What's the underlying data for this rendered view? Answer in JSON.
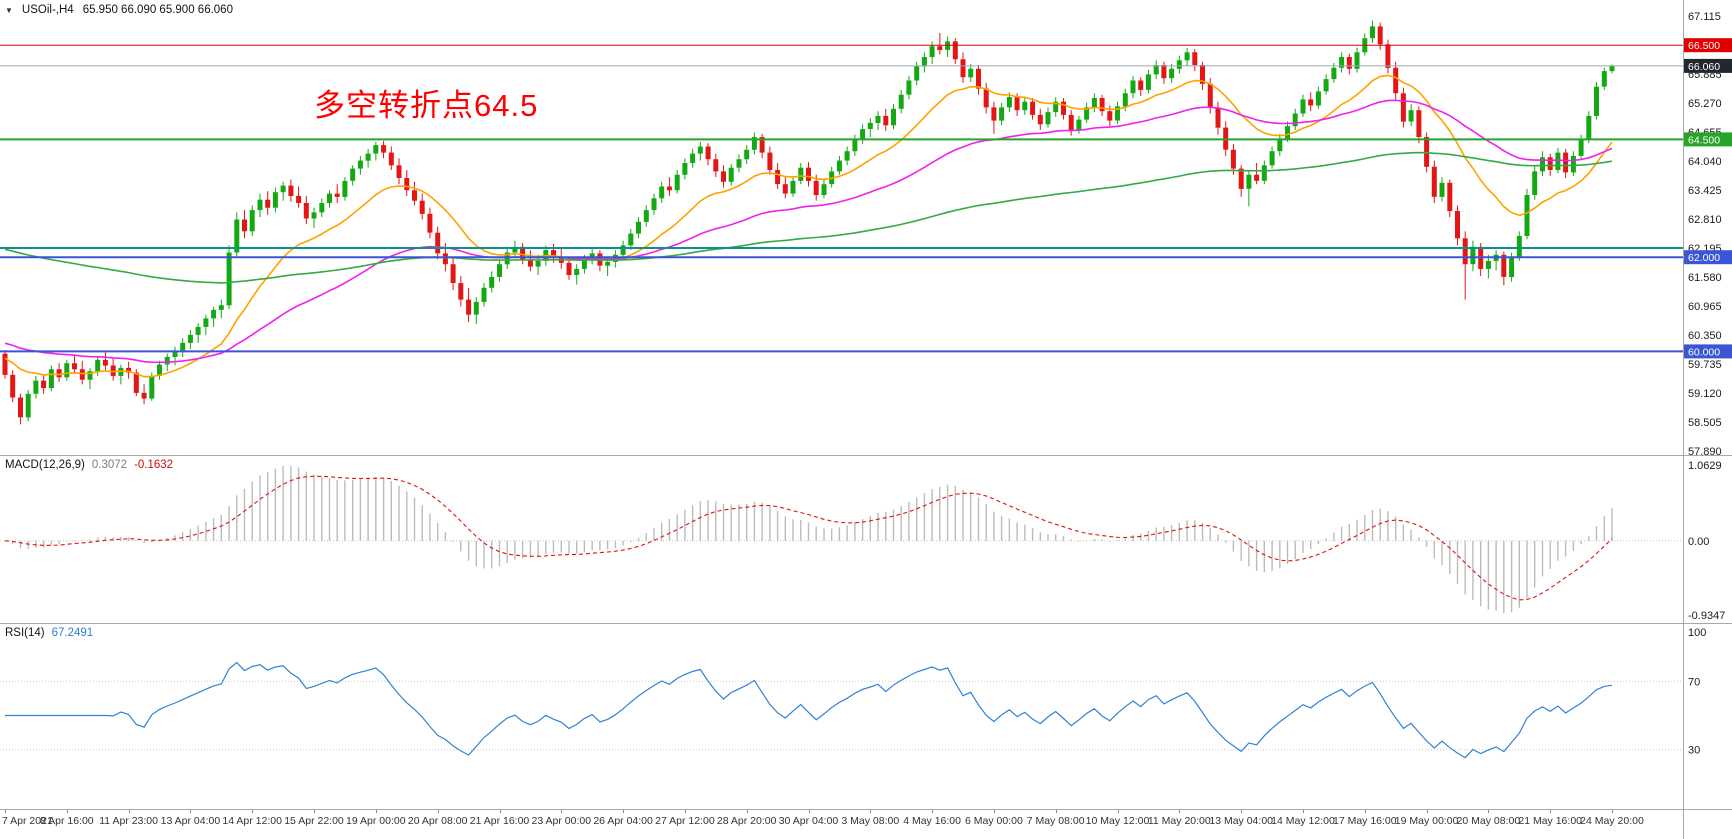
{
  "header": {
    "collapse_icon": "▼",
    "symbol": "USOil-,H4",
    "ohlc": "65.950 66.090 65.900 66.060"
  },
  "annotation": {
    "text": "多空转折点64.5",
    "color": "#ff0000"
  },
  "colors": {
    "background": "#ffffff",
    "up": "#13a913",
    "down": "#e41515",
    "axis_text": "#1c1c1c",
    "divider": "#a8a8a8",
    "macd_hist": "#bbbbbb",
    "macd_signal": "#dd1111",
    "rsi_line": "#2f82d8",
    "level_dotted": "#c9c9c9",
    "time_text": "#333333"
  },
  "chart_data": {
    "type": "candlestick",
    "symbol": "USOil-",
    "timeframe": "H4",
    "current_bar": {
      "open": 65.95,
      "high": 66.09,
      "low": 65.9,
      "close": 66.06
    },
    "price_axis_range": [
      57.8,
      67.46
    ],
    "y_ticks": [
      "67.115",
      "65.885",
      "65.270",
      "64.655",
      "64.040",
      "63.425",
      "62.810",
      "62.195",
      "61.580",
      "60.965",
      "60.350",
      "59.735",
      "59.120",
      "58.505",
      "57.890"
    ],
    "horizontal_lines": [
      {
        "price": 66.5,
        "color": "#e00000",
        "width": 1,
        "badge": "66.500",
        "badge_bg": "#e00000"
      },
      {
        "price": 64.5,
        "color": "#28a428",
        "width": 2,
        "badge": "64.500",
        "badge_bg": "#28a428"
      },
      {
        "price": 62.195,
        "color": "#0e8f8f",
        "width": 2
      },
      {
        "price": 62.0,
        "color": "#3b55d4",
        "width": 2,
        "badge": "62.000",
        "badge_bg": "#3b55d4"
      },
      {
        "price": 60.0,
        "color": "#3b55d4",
        "width": 2,
        "badge": "60.000",
        "badge_bg": "#3b55d4"
      },
      {
        "price": 66.06,
        "color": "#9aa8b5",
        "width": 1,
        "badge": "66.060",
        "badge_bg": "#23272e"
      }
    ],
    "moving_averages": [
      {
        "name": "ma-fast",
        "period": 16,
        "color": "#ffa200",
        "seed": 59.9
      },
      {
        "name": "ma-mid",
        "period": 50,
        "color": "#ee22ee",
        "seed": 60.2
      },
      {
        "name": "ma-slow",
        "period": 160,
        "color": "#33aa44",
        "seed": 62.2
      }
    ],
    "candles_ohlc": [
      [
        59.95,
        60.02,
        59.42,
        59.5
      ],
      [
        59.5,
        59.6,
        58.92,
        59.02
      ],
      [
        59.02,
        59.1,
        58.45,
        58.6
      ],
      [
        58.6,
        59.18,
        58.52,
        59.1
      ],
      [
        59.1,
        59.48,
        59.0,
        59.38
      ],
      [
        59.38,
        59.52,
        59.1,
        59.22
      ],
      [
        59.22,
        59.7,
        59.15,
        59.62
      ],
      [
        59.62,
        59.75,
        59.35,
        59.45
      ],
      [
        59.45,
        59.82,
        59.38,
        59.75
      ],
      [
        59.75,
        59.92,
        59.55,
        59.62
      ],
      [
        59.62,
        59.8,
        59.3,
        59.4
      ],
      [
        59.4,
        59.65,
        59.2,
        59.58
      ],
      [
        59.58,
        59.9,
        59.48,
        59.82
      ],
      [
        59.82,
        59.98,
        59.6,
        59.7
      ],
      [
        59.7,
        59.85,
        59.38,
        59.48
      ],
      [
        59.48,
        59.72,
        59.3,
        59.65
      ],
      [
        59.65,
        59.78,
        59.42,
        59.55
      ],
      [
        59.55,
        59.62,
        59.05,
        59.12
      ],
      [
        59.12,
        59.3,
        58.88,
        59.0
      ],
      [
        59.0,
        59.55,
        58.95,
        59.48
      ],
      [
        59.48,
        59.8,
        59.4,
        59.72
      ],
      [
        59.72,
        59.95,
        59.58,
        59.88
      ],
      [
        59.88,
        60.1,
        59.7,
        60.02
      ],
      [
        60.02,
        60.28,
        59.88,
        60.18
      ],
      [
        60.18,
        60.45,
        60.05,
        60.35
      ],
      [
        60.35,
        60.6,
        60.18,
        60.52
      ],
      [
        60.52,
        60.78,
        60.35,
        60.7
      ],
      [
        60.7,
        60.95,
        60.52,
        60.88
      ],
      [
        60.88,
        61.1,
        60.7,
        60.98
      ],
      [
        60.98,
        62.25,
        60.9,
        62.1
      ],
      [
        62.1,
        62.95,
        62.0,
        62.8
      ],
      [
        62.8,
        63.0,
        62.4,
        62.55
      ],
      [
        62.55,
        63.1,
        62.45,
        63.0
      ],
      [
        63.0,
        63.35,
        62.85,
        63.22
      ],
      [
        63.22,
        63.4,
        62.9,
        63.05
      ],
      [
        63.05,
        63.48,
        62.95,
        63.38
      ],
      [
        63.38,
        63.6,
        63.2,
        63.52
      ],
      [
        63.52,
        63.65,
        63.18,
        63.3
      ],
      [
        63.3,
        63.5,
        63.05,
        63.15
      ],
      [
        63.15,
        63.3,
        62.7,
        62.82
      ],
      [
        62.82,
        63.05,
        62.62,
        62.95
      ],
      [
        62.95,
        63.25,
        62.85,
        63.15
      ],
      [
        63.15,
        63.42,
        63.05,
        63.35
      ],
      [
        63.35,
        63.55,
        63.15,
        63.28
      ],
      [
        63.28,
        63.7,
        63.2,
        63.62
      ],
      [
        63.62,
        63.95,
        63.52,
        63.88
      ],
      [
        63.88,
        64.15,
        63.75,
        64.05
      ],
      [
        64.05,
        64.3,
        63.9,
        64.2
      ],
      [
        64.2,
        64.45,
        64.05,
        64.38
      ],
      [
        64.38,
        64.47,
        64.1,
        64.22
      ],
      [
        64.22,
        64.35,
        63.85,
        63.95
      ],
      [
        63.95,
        64.1,
        63.55,
        63.68
      ],
      [
        63.68,
        63.85,
        63.3,
        63.42
      ],
      [
        63.42,
        63.6,
        63.1,
        63.2
      ],
      [
        63.2,
        63.35,
        62.8,
        62.92
      ],
      [
        62.92,
        63.05,
        62.4,
        62.52
      ],
      [
        62.52,
        62.65,
        61.95,
        62.08
      ],
      [
        62.08,
        62.3,
        61.7,
        61.85
      ],
      [
        61.85,
        62.0,
        61.3,
        61.45
      ],
      [
        61.45,
        61.6,
        60.95,
        61.1
      ],
      [
        61.1,
        61.35,
        60.62,
        60.78
      ],
      [
        60.78,
        61.15,
        60.58,
        61.05
      ],
      [
        61.05,
        61.45,
        60.95,
        61.35
      ],
      [
        61.35,
        61.7,
        61.25,
        61.58
      ],
      [
        61.58,
        61.95,
        61.48,
        61.85
      ],
      [
        61.85,
        62.2,
        61.75,
        62.1
      ],
      [
        62.1,
        62.35,
        61.98,
        62.22
      ],
      [
        62.22,
        62.3,
        61.85,
        61.95
      ],
      [
        61.95,
        62.15,
        61.7,
        61.8
      ],
      [
        61.8,
        62.05,
        61.62,
        61.92
      ],
      [
        61.92,
        62.25,
        61.82,
        62.15
      ],
      [
        62.15,
        62.28,
        61.88,
        62.0
      ],
      [
        62.0,
        62.18,
        61.75,
        61.88
      ],
      [
        61.88,
        62.0,
        61.52,
        61.62
      ],
      [
        61.62,
        61.85,
        61.42,
        61.75
      ],
      [
        61.75,
        62.05,
        61.65,
        61.95
      ],
      [
        61.95,
        62.2,
        61.85,
        62.08
      ],
      [
        62.08,
        62.15,
        61.7,
        61.82
      ],
      [
        61.82,
        62.0,
        61.6,
        61.9
      ],
      [
        61.9,
        62.15,
        61.78,
        62.05
      ],
      [
        62.05,
        62.35,
        61.95,
        62.25
      ],
      [
        62.25,
        62.6,
        62.15,
        62.5
      ],
      [
        62.5,
        62.85,
        62.4,
        62.75
      ],
      [
        62.75,
        63.1,
        62.65,
        63.0
      ],
      [
        63.0,
        63.35,
        62.9,
        63.25
      ],
      [
        63.25,
        63.6,
        63.15,
        63.5
      ],
      [
        63.5,
        63.7,
        63.3,
        63.42
      ],
      [
        63.42,
        63.85,
        63.35,
        63.75
      ],
      [
        63.75,
        64.1,
        63.65,
        64.0
      ],
      [
        64.0,
        64.3,
        63.9,
        64.2
      ],
      [
        64.2,
        64.45,
        64.05,
        64.35
      ],
      [
        64.35,
        64.42,
        63.95,
        64.08
      ],
      [
        64.08,
        64.2,
        63.7,
        63.82
      ],
      [
        63.82,
        63.95,
        63.48,
        63.6
      ],
      [
        63.6,
        63.98,
        63.52,
        63.9
      ],
      [
        63.9,
        64.18,
        63.8,
        64.08
      ],
      [
        64.08,
        64.38,
        63.98,
        64.28
      ],
      [
        64.28,
        64.65,
        64.18,
        64.55
      ],
      [
        64.55,
        64.62,
        64.1,
        64.22
      ],
      [
        64.22,
        64.35,
        63.75,
        63.85
      ],
      [
        63.85,
        64.0,
        63.45,
        63.55
      ],
      [
        63.55,
        63.7,
        63.25,
        63.35
      ],
      [
        63.35,
        63.72,
        63.28,
        63.62
      ],
      [
        63.62,
        64.0,
        63.55,
        63.9
      ],
      [
        63.9,
        64.02,
        63.5,
        63.62
      ],
      [
        63.62,
        63.75,
        63.2,
        63.32
      ],
      [
        63.32,
        63.65,
        63.25,
        63.55
      ],
      [
        63.55,
        63.92,
        63.48,
        63.82
      ],
      [
        63.82,
        64.15,
        63.75,
        64.05
      ],
      [
        64.05,
        64.35,
        63.95,
        64.25
      ],
      [
        64.25,
        64.6,
        64.15,
        64.5
      ],
      [
        64.5,
        64.82,
        64.4,
        64.72
      ],
      [
        64.72,
        64.95,
        64.55,
        64.85
      ],
      [
        64.85,
        65.1,
        64.7,
        65.0
      ],
      [
        65.0,
        65.15,
        64.68,
        64.8
      ],
      [
        64.8,
        65.25,
        64.72,
        65.15
      ],
      [
        65.15,
        65.55,
        65.05,
        65.45
      ],
      [
        65.45,
        65.85,
        65.35,
        65.75
      ],
      [
        65.75,
        66.15,
        65.65,
        66.05
      ],
      [
        66.05,
        66.35,
        65.92,
        66.25
      ],
      [
        66.25,
        66.58,
        66.1,
        66.48
      ],
      [
        66.48,
        66.76,
        66.3,
        66.4
      ],
      [
        66.4,
        66.68,
        66.25,
        66.58
      ],
      [
        66.58,
        66.65,
        66.1,
        66.2
      ],
      [
        66.2,
        66.35,
        65.7,
        65.82
      ],
      [
        65.82,
        66.1,
        65.72,
        66.0
      ],
      [
        66.0,
        66.08,
        65.45,
        65.58
      ],
      [
        65.58,
        65.7,
        65.05,
        65.18
      ],
      [
        65.18,
        65.3,
        64.62,
        64.9
      ],
      [
        64.9,
        65.28,
        64.8,
        65.18
      ],
      [
        65.18,
        65.5,
        65.08,
        65.4
      ],
      [
        65.4,
        65.48,
        65.0,
        65.12
      ],
      [
        65.12,
        65.4,
        65.02,
        65.3
      ],
      [
        65.3,
        65.38,
        64.92,
        65.02
      ],
      [
        65.02,
        65.15,
        64.7,
        64.82
      ],
      [
        64.82,
        65.18,
        64.75,
        65.08
      ],
      [
        65.08,
        65.4,
        64.98,
        65.3
      ],
      [
        65.3,
        65.38,
        64.92,
        65.02
      ],
      [
        65.02,
        65.12,
        64.58,
        64.7
      ],
      [
        64.7,
        65.0,
        64.62,
        64.92
      ],
      [
        64.92,
        65.28,
        64.85,
        65.18
      ],
      [
        65.18,
        65.48,
        65.08,
        65.38
      ],
      [
        65.38,
        65.45,
        65.0,
        65.1
      ],
      [
        65.1,
        65.22,
        64.78,
        64.9
      ],
      [
        64.9,
        65.3,
        64.82,
        65.2
      ],
      [
        65.2,
        65.58,
        65.1,
        65.48
      ],
      [
        65.48,
        65.85,
        65.38,
        65.75
      ],
      [
        65.75,
        65.82,
        65.42,
        65.55
      ],
      [
        65.55,
        65.98,
        65.48,
        65.88
      ],
      [
        65.88,
        66.18,
        65.78,
        66.08
      ],
      [
        66.08,
        66.15,
        65.68,
        65.8
      ],
      [
        65.8,
        66.1,
        65.7,
        66.0
      ],
      [
        66.0,
        66.28,
        65.9,
        66.18
      ],
      [
        66.18,
        66.44,
        66.05,
        66.35
      ],
      [
        66.35,
        66.42,
        65.95,
        66.08
      ],
      [
        66.08,
        66.15,
        65.55,
        65.68
      ],
      [
        65.68,
        65.8,
        65.05,
        65.18
      ],
      [
        65.18,
        65.3,
        64.6,
        64.75
      ],
      [
        64.75,
        64.88,
        64.15,
        64.28
      ],
      [
        64.28,
        64.4,
        63.75,
        63.88
      ],
      [
        63.88,
        63.95,
        63.28,
        63.45
      ],
      [
        63.45,
        63.82,
        63.08,
        63.75
      ],
      [
        63.75,
        64.0,
        63.55,
        63.62
      ],
      [
        63.62,
        64.05,
        63.55,
        63.95
      ],
      [
        63.95,
        64.35,
        63.88,
        64.25
      ],
      [
        64.25,
        64.62,
        64.15,
        64.52
      ],
      [
        64.52,
        64.88,
        64.45,
        64.78
      ],
      [
        64.78,
        65.15,
        64.7,
        65.05
      ],
      [
        65.05,
        65.45,
        64.98,
        65.35
      ],
      [
        65.35,
        65.5,
        65.1,
        65.22
      ],
      [
        65.22,
        65.62,
        65.15,
        65.52
      ],
      [
        65.52,
        65.88,
        65.45,
        65.78
      ],
      [
        65.78,
        66.12,
        65.7,
        66.02
      ],
      [
        66.02,
        66.35,
        65.92,
        66.25
      ],
      [
        66.25,
        66.32,
        65.88,
        66.0
      ],
      [
        66.0,
        66.45,
        65.92,
        66.35
      ],
      [
        66.35,
        66.75,
        66.28,
        66.65
      ],
      [
        66.65,
        67.02,
        66.55,
        66.9
      ],
      [
        66.9,
        66.98,
        66.4,
        66.52
      ],
      [
        66.52,
        66.62,
        65.9,
        66.02
      ],
      [
        66.02,
        66.15,
        65.35,
        65.48
      ],
      [
        65.48,
        65.6,
        64.75,
        64.88
      ],
      [
        64.88,
        65.25,
        64.78,
        65.12
      ],
      [
        65.12,
        65.2,
        64.42,
        64.55
      ],
      [
        64.55,
        64.65,
        63.8,
        63.92
      ],
      [
        63.92,
        64.05,
        63.15,
        63.28
      ],
      [
        63.28,
        63.7,
        63.18,
        63.58
      ],
      [
        63.58,
        63.65,
        62.85,
        62.98
      ],
      [
        62.98,
        63.1,
        62.25,
        62.4
      ],
      [
        62.4,
        62.55,
        61.1,
        61.85
      ],
      [
        61.85,
        62.35,
        61.7,
        62.22
      ],
      [
        62.22,
        62.3,
        61.6,
        61.75
      ],
      [
        61.75,
        62.05,
        61.55,
        61.92
      ],
      [
        61.92,
        62.15,
        61.72,
        62.05
      ],
      [
        62.05,
        62.12,
        61.4,
        61.58
      ],
      [
        61.58,
        62.1,
        61.48,
        62.0
      ],
      [
        62.0,
        62.55,
        61.92,
        62.45
      ],
      [
        62.45,
        63.45,
        62.38,
        63.32
      ],
      [
        63.32,
        63.95,
        63.22,
        63.82
      ],
      [
        63.82,
        64.25,
        63.72,
        64.12
      ],
      [
        64.12,
        64.2,
        63.72,
        63.85
      ],
      [
        63.85,
        64.32,
        63.78,
        64.22
      ],
      [
        64.22,
        64.3,
        63.68,
        63.8
      ],
      [
        63.8,
        64.25,
        63.72,
        64.15
      ],
      [
        64.15,
        64.6,
        64.08,
        64.5
      ],
      [
        64.5,
        65.1,
        64.42,
        65.0
      ],
      [
        65.0,
        65.72,
        64.92,
        65.62
      ],
      [
        65.62,
        66.02,
        65.55,
        65.95
      ],
      [
        65.95,
        66.09,
        65.9,
        66.06
      ]
    ],
    "time_labels": [
      "7 Apr 2021",
      "8 Apr 16:00",
      "11 Apr 23:00",
      "13 Apr 04:00",
      "14 Apr 12:00",
      "15 Apr 22:00",
      "19 Apr 00:00",
      "20 Apr 08:00",
      "21 Apr 16:00",
      "23 Apr 00:00",
      "26 Apr 04:00",
      "27 Apr 12:00",
      "28 Apr 20:00",
      "30 Apr 04:00",
      "3 May 08:00",
      "4 May 16:00",
      "6 May 00:00",
      "7 May 08:00",
      "10 May 12:00",
      "11 May 20:00",
      "13 May 04:00",
      "14 May 12:00",
      "17 May 16:00",
      "19 May 00:00",
      "20 May 08:00",
      "21 May 16:00",
      "24 May 20:00"
    ],
    "macd": {
      "name": "MACD(12,26,9)",
      "fast": 12,
      "slow": 26,
      "signal_period": 9,
      "value_main": "0.3072",
      "value_signal": "-0.1632",
      "axis_max": "1.0629",
      "axis_zero": "0.00",
      "axis_min": "-0.9347"
    },
    "rsi": {
      "name": "RSI(14)",
      "period": 14,
      "value": "67.2491",
      "axis_labels": [
        {
          "text": "100",
          "value": 100
        },
        {
          "text": "70",
          "value": 70
        },
        {
          "text": "30",
          "value": 30
        }
      ],
      "level_lines": [
        70,
        30
      ]
    }
  }
}
